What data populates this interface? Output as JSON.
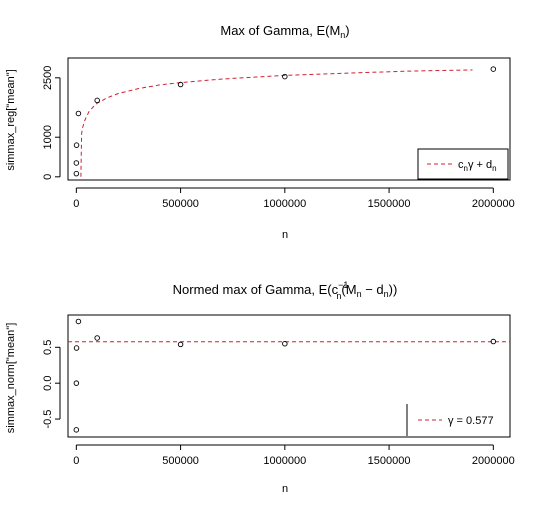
{
  "chart_data": [
    {
      "type": "scatter",
      "title": {
        "main": "Max of Gamma,  E(M",
        "sub": "n",
        "close": ")"
      },
      "xlabel": "n",
      "ylabel": "simmax_reg[\"mean\"]",
      "xlim": [
        -40000,
        2080000
      ],
      "ylim": [
        -80,
        3000
      ],
      "x_ticks": [
        0,
        500000,
        1000000,
        1500000,
        2000000
      ],
      "x_tick_labels": [
        "0",
        "500000",
        "1000000",
        "1500000",
        "2000000"
      ],
      "y_ticks": [
        0,
        1000,
        2500
      ],
      "y_tick_labels": [
        "0",
        "1000",
        "2500"
      ],
      "points": [
        {
          "x": 10,
          "y": 80
        },
        {
          "x": 100,
          "y": 350
        },
        {
          "x": 1000,
          "y": 800
        },
        {
          "x": 10000,
          "y": 1600
        },
        {
          "x": 100000,
          "y": 1930
        },
        {
          "x": 500000,
          "y": 2330
        },
        {
          "x": 1000000,
          "y": 2530
        },
        {
          "x": 2000000,
          "y": 2720
        }
      ],
      "curve": {
        "style": "dashed",
        "color": "#cc2233",
        "points": [
          [
            22000,
            0
          ],
          [
            25000,
            1090
          ],
          [
            30000,
            1240
          ],
          [
            40000,
            1420
          ],
          [
            60000,
            1640
          ],
          [
            80000,
            1760
          ],
          [
            100000,
            1860
          ],
          [
            150000,
            2000
          ],
          [
            200000,
            2100
          ],
          [
            300000,
            2230
          ],
          [
            400000,
            2320
          ],
          [
            500000,
            2380
          ],
          [
            700000,
            2470
          ],
          [
            1000000,
            2560
          ],
          [
            1300000,
            2620
          ],
          [
            1600000,
            2670
          ],
          [
            1900000,
            2700
          ]
        ]
      },
      "legend": {
        "position": "bottom-right",
        "label": {
          "c": "c",
          "sub1": "n",
          "mid": "γ + d",
          "sub2": "n"
        }
      }
    },
    {
      "type": "scatter",
      "title": {
        "main": "Normed max of Gamma,  E(c",
        "sup": "−1",
        "sub": "n",
        "mid": "(M",
        "sub2": "n",
        "minus": " − d",
        "sub3": "n",
        "close": "))"
      },
      "xlabel": "n",
      "ylabel": "simmax_norm[\"mean\"]",
      "xlim": [
        -40000,
        2080000
      ],
      "ylim": [
        -0.75,
        0.95
      ],
      "x_ticks": [
        0,
        500000,
        1000000,
        1500000,
        2000000
      ],
      "x_tick_labels": [
        "0",
        "500000",
        "1000000",
        "1500000",
        "2000000"
      ],
      "y_ticks": [
        -0.5,
        0.0,
        0.5
      ],
      "y_tick_labels": [
        "-0.5",
        "0.0",
        "0.5"
      ],
      "points": [
        {
          "x": 10,
          "y": -0.65
        },
        {
          "x": 100,
          "y": 0.0
        },
        {
          "x": 1000,
          "y": 0.49
        },
        {
          "x": 10000,
          "y": 0.86
        },
        {
          "x": 100000,
          "y": 0.63
        },
        {
          "x": 500000,
          "y": 0.54
        },
        {
          "x": 1000000,
          "y": 0.55
        },
        {
          "x": 2000000,
          "y": 0.58
        }
      ],
      "hline": {
        "y": 0.577,
        "style": "dashed",
        "color": "#cc2233"
      },
      "legend": {
        "position": "bottom-right",
        "label": "γ = 0.577"
      }
    }
  ]
}
